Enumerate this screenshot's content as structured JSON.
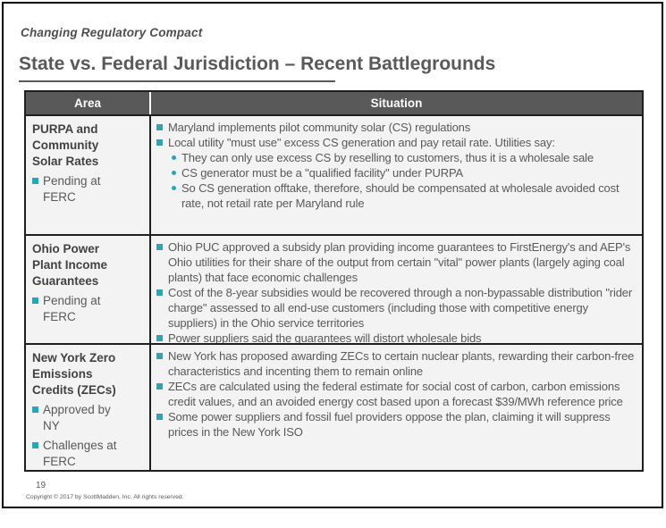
{
  "slide": {
    "eyebrow": "Changing Regulatory Compact",
    "title": "State vs. Federal Jurisdiction – Recent Battlegrounds",
    "page_number": "19",
    "copyright": "Copyright © 2017 by ScottMadden, Inc. All rights reserved."
  },
  "colors": {
    "accent_teal": "#2aa5b5",
    "header_bg": "#595959",
    "text_gray": "#595959"
  },
  "icons": {
    "bullet_square_icon": "teal filled square",
    "bullet_dot_icon": "teal filled dot"
  },
  "table": {
    "headers": [
      "Area",
      "Situation"
    ],
    "rows": [
      {
        "area_title": "PURPA and Community Solar Rates",
        "area_bullets": [
          "Pending at FERC"
        ],
        "situation": [
          {
            "level": 1,
            "text": "Maryland implements pilot community solar (CS) regulations"
          },
          {
            "level": 1,
            "text": "Local utility \"must use\" excess CS generation and pay retail rate. Utilities say:"
          },
          {
            "level": 2,
            "text": "They can only use excess CS by reselling to customers, thus it is a wholesale sale"
          },
          {
            "level": 2,
            "text": "CS generator must be a \"qualified facility\" under PURPA"
          },
          {
            "level": 2,
            "text": "So CS generation offtake, therefore, should be compensated at wholesale avoided cost rate, not retail rate per Maryland rule"
          }
        ]
      },
      {
        "area_title": "Ohio Power Plant Income Guarantees",
        "area_bullets": [
          "Pending at FERC"
        ],
        "situation": [
          {
            "level": 1,
            "text": "Ohio PUC approved a subsidy plan providing income guarantees to FirstEnergy's and AEP's Ohio utilities for their share of the output from certain \"vital\" power plants (largely aging coal plants) that face economic challenges"
          },
          {
            "level": 1,
            "text": "Cost of the 8-year subsidies would be recovered through a non-bypassable distribution \"rider charge\" assessed to all end-use customers (including those with competitive energy suppliers) in the Ohio service territories"
          },
          {
            "level": 1,
            "text": "Power suppliers said the guarantees will distort wholesale bids"
          }
        ]
      },
      {
        "area_title": "New York Zero Emissions Credits (ZECs)",
        "area_bullets": [
          "Approved by NY",
          "Challenges at FERC"
        ],
        "situation": [
          {
            "level": 1,
            "text": "New York has proposed awarding ZECs to certain nuclear plants, rewarding their carbon-free characteristics and incenting them to remain online"
          },
          {
            "level": 1,
            "text": "ZECs are calculated using the federal estimate for social cost of carbon, carbon emissions credit values, and an avoided energy cost based upon a forecast $39/MWh reference price"
          },
          {
            "level": 1,
            "text": "Some power suppliers and fossil fuel providers oppose the plan, claiming it will suppress prices in the New York ISO"
          }
        ]
      }
    ]
  }
}
